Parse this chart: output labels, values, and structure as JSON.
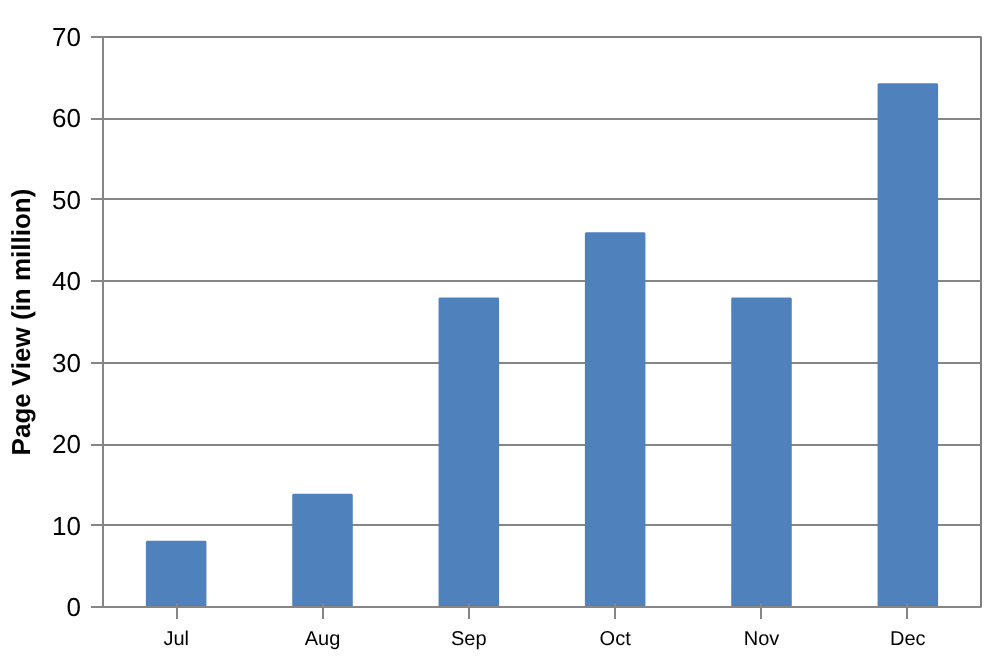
{
  "chart_data": {
    "type": "bar",
    "ylabel": "Page View (in million)",
    "categories": [
      "Jul",
      "Aug",
      "Sep",
      "Oct",
      "Nov",
      "Dec"
    ],
    "values": [
      8,
      13.8,
      37.9,
      45.9,
      37.9,
      64.2
    ],
    "color": "#4f81bd",
    "ylim": [
      0,
      70
    ],
    "yticks": [
      0,
      10,
      20,
      30,
      40,
      50,
      60,
      70
    ],
    "grid": "y"
  }
}
